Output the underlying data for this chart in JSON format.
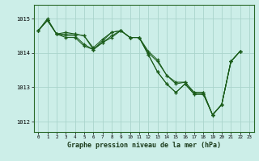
{
  "title": "Graphe pression niveau de la mer (hPa)",
  "bg_color": "#cceee8",
  "line_color": "#1a5c1a",
  "grid_color": "#aad4cc",
  "x_ticks": [
    0,
    1,
    2,
    3,
    4,
    5,
    6,
    7,
    8,
    9,
    10,
    11,
    12,
    13,
    14,
    15,
    16,
    17,
    18,
    19,
    20,
    21,
    22,
    23
  ],
  "ylim": [
    1011.7,
    1015.4
  ],
  "yticks": [
    1012,
    1013,
    1014,
    1015
  ],
  "line1": [
    1014.65,
    1015.0,
    1014.55,
    1014.6,
    1014.55,
    1014.5,
    1014.1,
    1014.35,
    1014.6,
    1014.65,
    1014.45,
    1014.45,
    1014.0,
    1013.75,
    1013.35,
    1013.1,
    1013.15,
    1012.85,
    1012.85,
    1012.2,
    1012.5,
    1013.75,
    1014.05,
    null
  ],
  "line2": [
    1014.65,
    1014.95,
    1014.55,
    1014.5,
    1014.5,
    1014.25,
    1014.1,
    1014.3,
    1014.5,
    1014.65,
    1014.45,
    1014.45,
    1013.95,
    1013.45,
    1013.1,
    1012.85,
    1013.1,
    1012.8,
    1012.8,
    1012.2,
    1012.5,
    1013.75,
    1014.05,
    null
  ],
  "line3": [
    1014.65,
    1014.95,
    1014.55,
    1014.45,
    1014.45,
    1014.2,
    1014.1,
    1014.3,
    1014.45,
    1014.65,
    1014.45,
    1014.45,
    1013.95,
    1013.45,
    1013.1,
    1012.85,
    1013.1,
    1012.8,
    1012.8,
    1012.2,
    1012.5,
    1013.75,
    1014.05,
    null
  ],
  "line4": [
    1014.65,
    1014.95,
    1014.55,
    1014.55,
    1014.55,
    1014.5,
    1014.15,
    1014.4,
    1014.6,
    1014.65,
    1014.45,
    1014.45,
    1014.05,
    1013.8,
    1013.35,
    1013.15,
    1013.15,
    1012.85,
    1012.85,
    1012.2,
    1012.5,
    1013.75,
    1014.05,
    null
  ]
}
